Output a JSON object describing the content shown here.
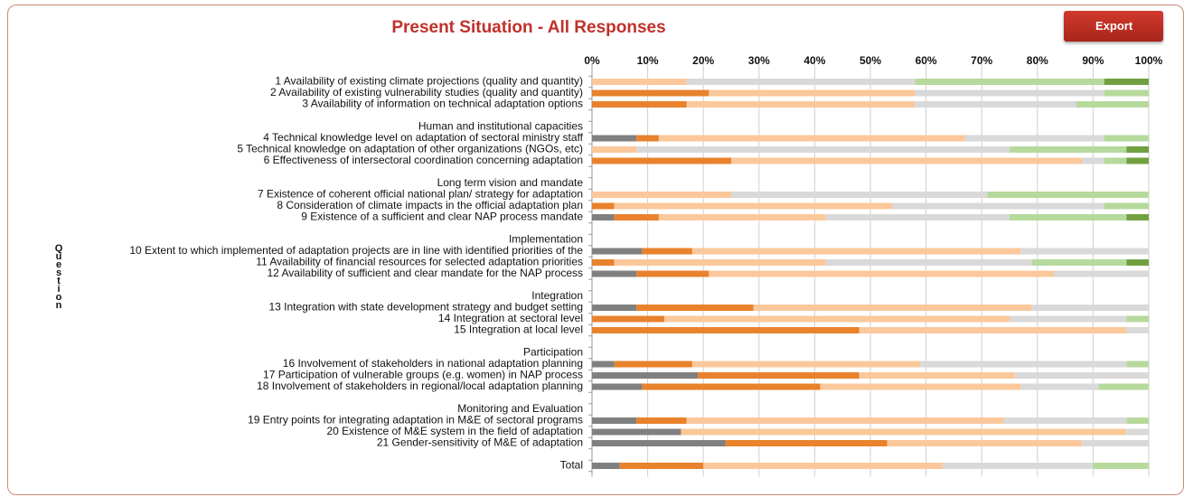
{
  "export_button": "Export",
  "chart_data": {
    "type": "bar",
    "orientation": "horizontal",
    "stacked": true,
    "title": "Present Situation - All Responses",
    "y_label": "Question",
    "categories": [
      null,
      "1 Availability of existing climate projections (quality and quantity)",
      "2 Availability of existing vulnerability studies (quality and quantity)",
      "3 Availability of information on technical adaptation options",
      null,
      "Human and institutional capacities",
      "4 Technical knowledge level on adaptation of sectoral ministry staff",
      "5 Technical knowledge on adaptation of other organizations (NGOs, etc)",
      "6 Effectiveness of intersectoral coordination concerning adaptation",
      null,
      "Long term vision and mandate",
      "7 Existence of coherent official national plan/ strategy for adaptation",
      "8 Consideration of climate impacts in the official adaptation plan",
      "9 Existence of a sufficient and clear NAP process mandate",
      null,
      "Implementation",
      "10 Extent to which implemented of adaptation projects are in line with identified priorities of the",
      "11 Availability of financial resources  for selected adaptation priorities",
      "12 Availability of sufficient and clear mandate for the NAP process",
      null,
      "Integration",
      "13 Integration with state development strategy and budget setting",
      "14 Integration at sectoral level",
      "15 Integration at local level",
      null,
      "Participation",
      "16 Involvement of stakeholders in national adaptation planning",
      "17 Participation of vulnerable groups (e.g. women) in NAP process",
      "18 Involvement of stakeholders in regional/local adaptation planning",
      null,
      "Monitoring and Evaluation",
      "19 Entry points for integrating adaptation in M&E of sectoral programs",
      "20 Existence of M&E system in the field of adaptation",
      "21 Gender-sensitivity of M&E of adaptation",
      null,
      "Total"
    ],
    "series": [
      {
        "color": "#808080",
        "values": [
          null,
          0,
          0,
          0,
          null,
          null,
          8,
          0,
          0,
          null,
          null,
          0,
          0,
          4,
          null,
          null,
          9,
          0,
          8,
          null,
          null,
          8,
          0,
          0,
          null,
          null,
          4,
          19,
          9,
          null,
          null,
          8,
          16,
          24,
          null,
          5
        ]
      },
      {
        "color": "#e8822c",
        "values": [
          null,
          0,
          21,
          17,
          null,
          null,
          4,
          0,
          25,
          null,
          null,
          0,
          4,
          8,
          null,
          null,
          9,
          4,
          13,
          null,
          null,
          21,
          13,
          48,
          null,
          null,
          14,
          29,
          32,
          null,
          null,
          9,
          0,
          29,
          null,
          15
        ]
      },
      {
        "color": "#fbc89b",
        "values": [
          null,
          17,
          37,
          41,
          null,
          null,
          55,
          8,
          63,
          null,
          null,
          25,
          50,
          30,
          null,
          null,
          59,
          38,
          62,
          null,
          null,
          50,
          62,
          48,
          null,
          null,
          41,
          28,
          36,
          null,
          null,
          57,
          80,
          35,
          null,
          43
        ]
      },
      {
        "color": "#d9d9d9",
        "values": [
          null,
          41,
          34,
          29,
          null,
          null,
          25,
          67,
          4,
          null,
          null,
          46,
          38,
          33,
          null,
          null,
          23,
          37,
          17,
          null,
          null,
          21,
          21,
          4,
          null,
          null,
          37,
          24,
          14,
          null,
          null,
          22,
          4,
          12,
          null,
          27
        ]
      },
      {
        "color": "#b6d99c",
        "values": [
          null,
          34,
          8,
          13,
          null,
          null,
          8,
          21,
          4,
          null,
          null,
          29,
          8,
          21,
          null,
          null,
          0,
          17,
          0,
          null,
          null,
          0,
          4,
          0,
          null,
          null,
          4,
          0,
          9,
          null,
          null,
          4,
          0,
          0,
          null,
          10
        ]
      },
      {
        "color": "#71a041",
        "values": [
          null,
          8,
          0,
          0,
          null,
          null,
          0,
          4,
          4,
          null,
          null,
          0,
          0,
          4,
          null,
          null,
          0,
          4,
          0,
          null,
          null,
          0,
          0,
          0,
          null,
          null,
          0,
          0,
          0,
          null,
          null,
          0,
          0,
          0,
          null,
          0
        ]
      }
    ],
    "xlim": [
      0,
      100
    ],
    "xticks": [
      {
        "value": 0,
        "label": "0%"
      },
      {
        "value": 10,
        "label": "10%"
      },
      {
        "value": 20,
        "label": "20%"
      },
      {
        "value": 30,
        "label": "30%"
      },
      {
        "value": 40,
        "label": "40%"
      },
      {
        "value": 50,
        "label": "50%"
      },
      {
        "value": 60,
        "label": "60%"
      },
      {
        "value": 70,
        "label": "70%"
      },
      {
        "value": 80,
        "label": "80%"
      },
      {
        "value": 90,
        "label": "90%"
      },
      {
        "value": 100,
        "label": "100%"
      }
    ],
    "grid": true
  }
}
